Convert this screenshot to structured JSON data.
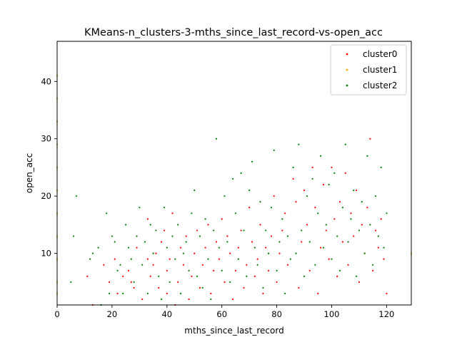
{
  "chart_data": {
    "type": "scatter",
    "title": "KMeans-n_clusters-3-mths_since_last_record-vs-open_acc",
    "xlabel": "mths_since_last_record",
    "ylabel": "open_acc",
    "xlim": [
      0,
      129
    ],
    "ylim": [
      1,
      47
    ],
    "xticks": [
      0,
      20,
      40,
      60,
      80,
      100,
      120
    ],
    "yticks": [
      10,
      20,
      30,
      40
    ],
    "grid": false,
    "legend_position": "top-right",
    "series": [
      {
        "name": "cluster0",
        "color": "#ff0000",
        "points": [
          [
            11,
            6
          ],
          [
            13,
            1
          ],
          [
            17,
            8
          ],
          [
            19,
            5
          ],
          [
            21,
            9
          ],
          [
            22,
            3
          ],
          [
            24,
            6
          ],
          [
            26,
            7
          ],
          [
            27,
            5
          ],
          [
            28,
            4
          ],
          [
            29,
            11
          ],
          [
            31,
            2
          ],
          [
            33,
            9
          ],
          [
            33,
            16
          ],
          [
            34,
            6
          ],
          [
            35,
            8
          ],
          [
            36,
            10
          ],
          [
            37,
            4
          ],
          [
            38,
            12
          ],
          [
            39,
            14
          ],
          [
            40,
            3
          ],
          [
            40,
            7
          ],
          [
            41,
            9
          ],
          [
            42,
            17
          ],
          [
            43,
            1
          ],
          [
            44,
            5
          ],
          [
            45,
            11
          ],
          [
            46,
            8
          ],
          [
            47,
            13
          ],
          [
            48,
            2
          ],
          [
            49,
            6
          ],
          [
            50,
            10
          ],
          [
            51,
            14
          ],
          [
            52,
            4
          ],
          [
            53,
            8
          ],
          [
            54,
            11
          ],
          [
            55,
            15
          ],
          [
            56,
            3
          ],
          [
            57,
            7
          ],
          [
            58,
            12
          ],
          [
            59,
            9
          ],
          [
            60,
            16
          ],
          [
            61,
            5
          ],
          [
            62,
            13
          ],
          [
            63,
            10
          ],
          [
            64,
            2
          ],
          [
            65,
            7
          ],
          [
            66,
            11
          ],
          [
            67,
            14
          ],
          [
            68,
            4
          ],
          [
            69,
            8
          ],
          [
            70,
            18
          ],
          [
            71,
            12
          ],
          [
            72,
            6
          ],
          [
            73,
            9
          ],
          [
            74,
            15
          ],
          [
            75,
            3
          ],
          [
            76,
            11
          ],
          [
            77,
            7
          ],
          [
            78,
            13
          ],
          [
            79,
            20
          ],
          [
            80,
            5
          ],
          [
            81,
            10
          ],
          [
            82,
            14
          ],
          [
            83,
            17
          ],
          [
            84,
            8
          ],
          [
            86,
            23
          ],
          [
            87,
            19
          ],
          [
            88,
            4
          ],
          [
            89,
            12
          ],
          [
            90,
            21
          ],
          [
            91,
            15
          ],
          [
            92,
            7
          ],
          [
            93,
            25
          ],
          [
            94,
            18
          ],
          [
            95,
            3
          ],
          [
            96,
            11
          ],
          [
            97,
            22
          ],
          [
            98,
            14
          ],
          [
            99,
            9
          ],
          [
            100,
            25
          ],
          [
            101,
            16
          ],
          [
            102,
            6
          ],
          [
            103,
            19
          ],
          [
            104,
            12
          ],
          [
            105,
            24
          ],
          [
            106,
            8
          ],
          [
            107,
            17
          ],
          [
            108,
            13
          ],
          [
            109,
            21
          ],
          [
            110,
            5
          ],
          [
            111,
            15
          ],
          [
            112,
            10
          ],
          [
            113,
            18
          ],
          [
            114,
            30
          ],
          [
            115,
            7
          ],
          [
            116,
            14
          ],
          [
            117,
            11
          ],
          [
            118,
            16
          ],
          [
            119,
            9
          ],
          [
            120,
            3
          ]
        ]
      },
      {
        "name": "cluster1",
        "color": "#ffa500",
        "points": [
          [
            0,
            41
          ],
          [
            0,
            37
          ],
          [
            0,
            33
          ],
          [
            0,
            29
          ],
          [
            0,
            25
          ],
          [
            0,
            21
          ],
          [
            0,
            17
          ],
          [
            0,
            13
          ],
          [
            0,
            9
          ],
          [
            0,
            5
          ],
          [
            0,
            3
          ],
          [
            129,
            10
          ]
        ]
      },
      {
        "name": "cluster2",
        "color": "#008000",
        "points": [
          [
            5,
            5
          ],
          [
            6,
            13
          ],
          [
            7,
            20
          ],
          [
            12,
            9
          ],
          [
            13,
            10
          ],
          [
            15,
            11
          ],
          [
            16,
            1
          ],
          [
            18,
            17
          ],
          [
            19,
            3
          ],
          [
            20,
            13
          ],
          [
            21,
            12
          ],
          [
            22,
            7
          ],
          [
            23,
            8
          ],
          [
            24,
            3
          ],
          [
            25,
            15
          ],
          [
            26,
            11
          ],
          [
            27,
            9
          ],
          [
            28,
            5
          ],
          [
            29,
            13
          ],
          [
            30,
            18
          ],
          [
            31,
            8
          ],
          [
            32,
            12
          ],
          [
            33,
            3
          ],
          [
            34,
            15
          ],
          [
            35,
            10
          ],
          [
            36,
            14
          ],
          [
            37,
            6
          ],
          [
            38,
            2
          ],
          [
            39,
            18
          ],
          [
            40,
            11
          ],
          [
            41,
            5
          ],
          [
            42,
            13
          ],
          [
            43,
            9
          ],
          [
            44,
            15
          ],
          [
            45,
            3
          ],
          [
            46,
            10
          ],
          [
            47,
            12
          ],
          [
            48,
            7
          ],
          [
            49,
            17
          ],
          [
            50,
            21
          ],
          [
            51,
            6
          ],
          [
            52,
            13
          ],
          [
            53,
            4
          ],
          [
            54,
            16
          ],
          [
            55,
            9
          ],
          [
            56,
            2
          ],
          [
            57,
            14
          ],
          [
            58,
            30
          ],
          [
            59,
            11
          ],
          [
            60,
            7
          ],
          [
            61,
            20
          ],
          [
            62,
            12
          ],
          [
            63,
            5
          ],
          [
            64,
            23
          ],
          [
            65,
            17
          ],
          [
            66,
            9
          ],
          [
            67,
            24
          ],
          [
            68,
            14
          ],
          [
            69,
            6
          ],
          [
            70,
            21
          ],
          [
            71,
            26
          ],
          [
            72,
            11
          ],
          [
            73,
            8
          ],
          [
            74,
            19
          ],
          [
            75,
            4
          ],
          [
            76,
            14
          ],
          [
            77,
            10
          ],
          [
            78,
            18
          ],
          [
            79,
            28
          ],
          [
            80,
            7
          ],
          [
            81,
            12
          ],
          [
            82,
            16
          ],
          [
            83,
            3
          ],
          [
            84,
            13
          ],
          [
            85,
            9
          ],
          [
            86,
            25
          ],
          [
            87,
            10
          ],
          [
            88,
            29
          ],
          [
            89,
            14
          ],
          [
            90,
            6
          ],
          [
            91,
            20
          ],
          [
            92,
            12
          ],
          [
            93,
            23
          ],
          [
            94,
            8
          ],
          [
            95,
            17
          ],
          [
            96,
            27
          ],
          [
            97,
            11
          ],
          [
            98,
            15
          ],
          [
            99,
            22
          ],
          [
            100,
            9
          ],
          [
            101,
            24
          ],
          [
            102,
            13
          ],
          [
            103,
            7
          ],
          [
            104,
            18
          ],
          [
            105,
            29
          ],
          [
            106,
            12
          ],
          [
            107,
            16
          ],
          [
            108,
            21
          ],
          [
            109,
            6
          ],
          [
            110,
            14
          ],
          [
            111,
            19
          ],
          [
            112,
            10
          ],
          [
            113,
            27
          ],
          [
            114,
            15
          ],
          [
            115,
            8
          ],
          [
            116,
            20
          ],
          [
            117,
            13
          ],
          [
            118,
            25
          ],
          [
            119,
            11
          ],
          [
            120,
            17
          ]
        ]
      }
    ]
  }
}
